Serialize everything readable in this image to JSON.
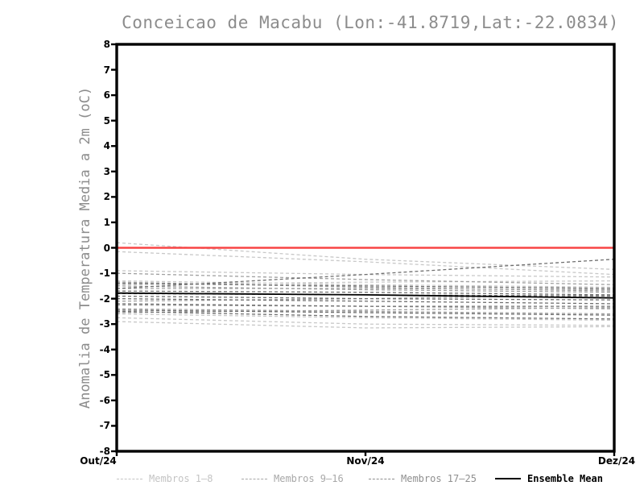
{
  "chart_data": {
    "type": "line",
    "title": "Conceicao de Macabu (Lon:-41.8719,Lat:-22.0834)",
    "ylabel": "Anomalia de Temperatura Media a 2m (oC)",
    "xlabel": "",
    "x_categories": [
      "Out/24",
      "Nov/24",
      "Dez/24"
    ],
    "ylim": [
      -8,
      8
    ],
    "yticks": [
      8,
      7,
      6,
      5,
      4,
      3,
      2,
      1,
      0,
      -1,
      -2,
      -3,
      -4,
      -5,
      -6,
      -7,
      -8
    ],
    "grid": "off",
    "legend_position": "bottom",
    "zero_line": {
      "value": 0,
      "color": "#f84545"
    },
    "series": [
      {
        "name": "Membros 1–8",
        "color": "#c8c8c8",
        "style": "dashed",
        "members": [
          [
            0.2,
            -0.45,
            -0.85
          ],
          [
            -0.15,
            -0.55,
            -1.05
          ],
          [
            -0.9,
            -1.05,
            -1.15
          ],
          [
            -1.3,
            -1.45,
            -1.55
          ],
          [
            -1.45,
            -1.35,
            -1.3
          ],
          [
            -2.6,
            -2.75,
            -2.85
          ],
          [
            -2.75,
            -3.0,
            -3.05
          ],
          [
            -2.9,
            -3.15,
            -3.1
          ]
        ]
      },
      {
        "name": "Membros 9–16",
        "color": "#a0a0a0",
        "style": "dashed",
        "members": [
          [
            -1.0,
            -1.25,
            -1.45
          ],
          [
            -1.35,
            -1.55,
            -1.7
          ],
          [
            -1.5,
            -1.65,
            -1.75
          ],
          [
            -1.6,
            -1.6,
            -1.65
          ],
          [
            -2.1,
            -2.0,
            -1.85
          ],
          [
            -2.25,
            -2.3,
            -2.4
          ],
          [
            -2.4,
            -2.5,
            -2.6
          ],
          [
            -2.55,
            -2.45,
            -2.35
          ]
        ]
      },
      {
        "name": "Membros 17–25",
        "color": "#707070",
        "style": "dashed",
        "members": [
          [
            -1.6,
            -1.05,
            -0.45
          ],
          [
            -1.4,
            -1.5,
            -1.6
          ],
          [
            -1.7,
            -1.75,
            -1.85
          ],
          [
            -1.8,
            -1.85,
            -1.9
          ],
          [
            -1.9,
            -2.0,
            -2.05
          ],
          [
            -2.0,
            -2.1,
            -2.2
          ],
          [
            -2.2,
            -2.3,
            -2.3
          ],
          [
            -2.45,
            -2.55,
            -2.65
          ],
          [
            -2.5,
            -2.7,
            -2.8
          ]
        ]
      }
    ],
    "ensemble_mean": {
      "name": "Ensemble Mean",
      "color": "#000000",
      "style": "solid",
      "values": [
        -1.78,
        -1.85,
        -1.97
      ]
    },
    "legend": [
      {
        "label": "Membros 1–8",
        "color": "#c4c4c4",
        "style": "dashed"
      },
      {
        "label": "Membros 9–16",
        "color": "#a8a8a8",
        "style": "dashed"
      },
      {
        "label": "Membros 17–25",
        "color": "#8f8f8f",
        "style": "dashed"
      },
      {
        "label": "Ensemble Mean",
        "color": "#000000",
        "style": "solid"
      }
    ]
  }
}
